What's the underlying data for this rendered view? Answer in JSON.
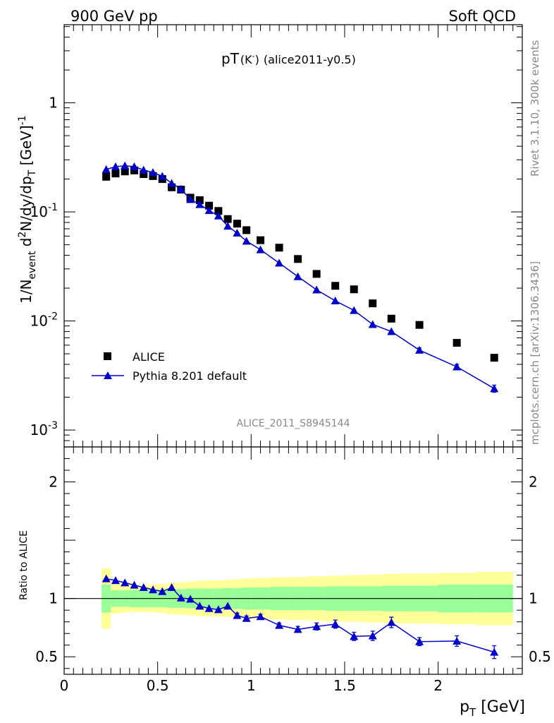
{
  "header": {
    "left": "900 GeV pp",
    "right": "Soft QCD"
  },
  "side_labels": {
    "upper": "Rivet 3.1.10,  300k events",
    "lower": "mcplots.cern.ch [arXiv:1306.3436]"
  },
  "chart_data": [
    {
      "type": "scatter",
      "panel": "main",
      "title": {
        "main": "pT",
        "sup_part": "(K",
        "minus": "-",
        "close": ")",
        "suffix": "(alice2011-y0.5)"
      },
      "ylabel": {
        "a": "1/N",
        "sub1": "event",
        "b": " d",
        "sup1": "2",
        "c": "N/dy/dp",
        "sub2": "T",
        "d": " [GeV]",
        "sup2": "-1"
      },
      "yscale": "log",
      "xlim": [
        0,
        2.45
      ],
      "ylim": [
        0.0007,
        5.2
      ],
      "y_tick_labels": [
        {
          "value": 1,
          "base": "1",
          "exp": ""
        },
        {
          "value": 0.1,
          "base": "10",
          "exp": "-1"
        },
        {
          "value": 0.01,
          "base": "10",
          "exp": "-2"
        },
        {
          "value": 0.001,
          "base": "10",
          "exp": "-3"
        }
      ],
      "watermark": "ALICE_2011_S8945144",
      "legend": {
        "position": "lower-left",
        "entries": [
          "ALICE",
          "Pythia 8.201 default"
        ]
      },
      "series": [
        {
          "name": "ALICE",
          "marker": "square",
          "color": "#000000",
          "x": [
            0.225,
            0.275,
            0.325,
            0.375,
            0.425,
            0.475,
            0.525,
            0.575,
            0.625,
            0.675,
            0.725,
            0.775,
            0.825,
            0.875,
            0.925,
            0.975,
            1.05,
            1.15,
            1.25,
            1.35,
            1.45,
            1.55,
            1.65,
            1.75,
            1.9,
            2.1,
            2.3
          ],
          "y": [
            0.21,
            0.225,
            0.235,
            0.24,
            0.222,
            0.213,
            0.2,
            0.168,
            0.16,
            0.135,
            0.128,
            0.114,
            0.102,
            0.086,
            0.078,
            0.068,
            0.055,
            0.047,
            0.037,
            0.027,
            0.021,
            0.0195,
            0.0145,
            0.0105,
            0.0092,
            0.0063,
            0.0046
          ]
        },
        {
          "name": "Pythia 8.201 default",
          "marker": "triangle",
          "color": "#0000cc",
          "x": [
            0.225,
            0.275,
            0.325,
            0.375,
            0.425,
            0.475,
            0.525,
            0.575,
            0.625,
            0.675,
            0.725,
            0.775,
            0.825,
            0.875,
            0.925,
            0.975,
            1.05,
            1.15,
            1.25,
            1.35,
            1.45,
            1.55,
            1.65,
            1.75,
            1.9,
            2.1,
            2.3
          ],
          "y": [
            0.245,
            0.26,
            0.265,
            0.26,
            0.242,
            0.23,
            0.212,
            0.183,
            0.162,
            0.13,
            0.117,
            0.103,
            0.092,
            0.074,
            0.064,
            0.054,
            0.045,
            0.034,
            0.0255,
            0.0193,
            0.0153,
            0.0125,
            0.0093,
            0.008,
            0.0054,
            0.0038,
            0.0024
          ],
          "yerr": [
            0,
            0,
            0,
            0,
            0,
            0,
            0,
            0,
            0,
            0,
            0,
            0,
            0,
            0,
            0,
            0,
            0,
            0,
            0,
            0,
            0,
            0,
            0,
            0,
            0.00025,
            0.0002,
            0.00018
          ]
        }
      ]
    },
    {
      "type": "scatter",
      "panel": "ratio",
      "ylabel": "Ratio to ALICE",
      "xlabel": {
        "a": "p",
        "sub": "T",
        "b": " [GeV]"
      },
      "xlim": [
        0,
        2.45
      ],
      "ylim": [
        0.35,
        2.3
      ],
      "x_tick_labels": [
        {
          "value": 0,
          "label": "0"
        },
        {
          "value": 0.5,
          "label": "0.5"
        },
        {
          "value": 1,
          "label": "1"
        },
        {
          "value": 1.5,
          "label": "1.5"
        },
        {
          "value": 2,
          "label": "2"
        }
      ],
      "y_tick_labels": [
        {
          "value": 0.5,
          "label": "0.5"
        },
        {
          "value": 1,
          "label": "1"
        },
        {
          "value": 2,
          "label": "2"
        }
      ],
      "bands": {
        "edges": [
          0.2,
          0.25,
          0.3,
          0.35,
          0.4,
          0.45,
          0.5,
          0.55,
          0.6,
          0.65,
          0.7,
          0.75,
          0.8,
          0.85,
          0.9,
          0.95,
          1.0,
          1.1,
          1.2,
          1.3,
          1.4,
          1.5,
          1.6,
          1.7,
          1.8,
          2.0,
          2.2,
          2.4
        ],
        "inner": [
          0.12,
          0.07,
          0.07,
          0.075,
          0.075,
          0.075,
          0.075,
          0.08,
          0.08,
          0.085,
          0.085,
          0.085,
          0.085,
          0.09,
          0.09,
          0.095,
          0.095,
          0.1,
          0.1,
          0.1,
          0.105,
          0.105,
          0.105,
          0.11,
          0.11,
          0.12,
          0.12
        ],
        "outer": [
          0.26,
          0.13,
          0.12,
          0.115,
          0.115,
          0.12,
          0.125,
          0.135,
          0.14,
          0.145,
          0.15,
          0.155,
          0.155,
          0.16,
          0.165,
          0.17,
          0.175,
          0.18,
          0.185,
          0.19,
          0.195,
          0.2,
          0.205,
          0.21,
          0.215,
          0.22,
          0.23
        ],
        "inner_color": "#99ff99",
        "outer_color": "#ffff99"
      },
      "series": [
        {
          "name": "Pythia 8.201 default",
          "marker": "triangle",
          "color": "#0000cc",
          "x": [
            0.225,
            0.275,
            0.325,
            0.375,
            0.425,
            0.475,
            0.525,
            0.575,
            0.625,
            0.675,
            0.725,
            0.775,
            0.825,
            0.875,
            0.925,
            0.975,
            1.05,
            1.15,
            1.25,
            1.35,
            1.45,
            1.55,
            1.65,
            1.75,
            1.9,
            2.1,
            2.3
          ],
          "y": [
            1.17,
            1.155,
            1.135,
            1.115,
            1.095,
            1.075,
            1.06,
            1.095,
            1.005,
            0.995,
            0.935,
            0.915,
            0.905,
            0.935,
            0.855,
            0.83,
            0.845,
            0.77,
            0.735,
            0.76,
            0.78,
            0.675,
            0.68,
            0.795,
            0.63,
            0.635,
            0.54
          ],
          "yerr": [
            0,
            0,
            0,
            0,
            0,
            0,
            0,
            0,
            0,
            0,
            0,
            0,
            0,
            0,
            0.02,
            0.02,
            0.02,
            0.02,
            0.025,
            0.03,
            0.035,
            0.035,
            0.04,
            0.045,
            0.035,
            0.045,
            0.055
          ]
        }
      ]
    }
  ]
}
